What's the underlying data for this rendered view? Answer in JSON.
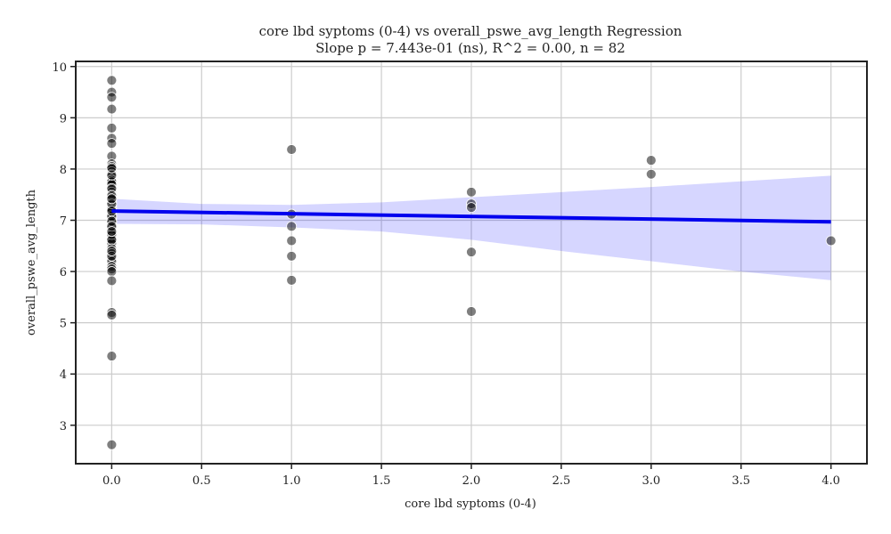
{
  "chart_data": {
    "type": "scatter",
    "title": "core lbd syptoms (0-4) vs overall_pswe_avg_length Regression",
    "subtitle": "Slope p = 7.443e-01 (ns), R^2 = 0.00, n = 82",
    "xlabel": "core lbd syptoms (0-4)",
    "ylabel": "overall_pswe_avg_length",
    "xlim": [
      -0.2,
      4.2
    ],
    "ylim": [
      2.25,
      10.1
    ],
    "x_ticks": [
      "0.0",
      "0.5",
      "1.0",
      "1.5",
      "2.0",
      "2.5",
      "3.0",
      "3.5",
      "4.0"
    ],
    "y_ticks": [
      "3",
      "4",
      "5",
      "6",
      "7",
      "8",
      "9",
      "10"
    ],
    "grid": true,
    "points": [
      [
        0,
        9.73
      ],
      [
        0,
        9.5
      ],
      [
        0,
        9.4
      ],
      [
        0,
        9.17
      ],
      [
        0,
        8.8
      ],
      [
        0,
        8.6
      ],
      [
        0,
        8.5
      ],
      [
        0,
        8.25
      ],
      [
        0,
        8.1
      ],
      [
        0,
        8.05
      ],
      [
        0,
        8.0
      ],
      [
        0,
        7.95
      ],
      [
        0,
        7.9
      ],
      [
        0,
        7.85
      ],
      [
        0,
        7.8
      ],
      [
        0,
        7.78
      ],
      [
        0,
        7.75
      ],
      [
        0,
        7.7
      ],
      [
        0,
        7.6
      ],
      [
        0,
        7.55
      ],
      [
        0,
        7.5
      ],
      [
        0,
        7.45
      ],
      [
        0,
        7.4
      ],
      [
        0,
        7.35
      ],
      [
        0,
        7.3
      ],
      [
        0,
        7.25
      ],
      [
        0,
        7.2
      ],
      [
        0,
        7.15
      ],
      [
        0,
        7.1
      ],
      [
        0,
        7.05
      ],
      [
        0,
        7.0
      ],
      [
        0,
        6.95
      ],
      [
        0,
        6.9
      ],
      [
        0,
        6.85
      ],
      [
        0,
        6.8
      ],
      [
        0,
        6.75
      ],
      [
        0,
        6.7
      ],
      [
        0,
        6.65
      ],
      [
        0,
        6.6
      ],
      [
        0,
        6.55
      ],
      [
        0,
        6.45
      ],
      [
        0,
        6.35
      ],
      [
        0,
        6.25
      ],
      [
        0,
        6.2
      ],
      [
        0,
        6.1
      ],
      [
        0,
        6.05
      ],
      [
        0,
        6.0
      ],
      [
        0,
        5.82
      ],
      [
        0,
        5.2
      ],
      [
        0,
        5.15
      ],
      [
        0,
        4.35
      ],
      [
        0,
        2.62
      ],
      [
        0,
        7.62
      ],
      [
        0,
        7.08
      ],
      [
        0,
        6.98
      ],
      [
        0,
        6.72
      ],
      [
        0,
        6.3
      ],
      [
        0,
        7.88
      ],
      [
        0,
        8.02
      ],
      [
        0,
        7.48
      ],
      [
        0,
        6.88
      ],
      [
        0,
        6.62
      ],
      [
        0,
        7.22
      ],
      [
        0,
        7.32
      ],
      [
        1,
        8.38
      ],
      [
        1,
        7.12
      ],
      [
        1,
        6.88
      ],
      [
        1,
        6.6
      ],
      [
        1,
        6.3
      ],
      [
        1,
        5.83
      ],
      [
        2,
        7.55
      ],
      [
        2,
        7.32
      ],
      [
        2,
        7.25
      ],
      [
        2,
        6.38
      ],
      [
        2,
        5.22
      ],
      [
        3,
        8.17
      ],
      [
        3,
        7.9
      ],
      [
        4,
        6.6
      ],
      [
        0,
        6.4
      ],
      [
        0,
        7.42
      ],
      [
        0,
        6.78
      ],
      [
        0,
        7.18
      ]
    ],
    "regression_line": {
      "x": [
        0,
        4
      ],
      "y": [
        7.18,
        6.97
      ]
    },
    "confidence_band": {
      "x": [
        0,
        0.5,
        1.0,
        1.5,
        2.0,
        2.5,
        3.0,
        3.5,
        4.0
      ],
      "upper": [
        7.42,
        7.32,
        7.3,
        7.35,
        7.45,
        7.55,
        7.65,
        7.76,
        7.87
      ],
      "lower": [
        6.93,
        6.92,
        6.86,
        6.78,
        6.62,
        6.4,
        6.2,
        6.0,
        5.83
      ]
    },
    "colors": {
      "points": "#000000",
      "line": "#0000ee",
      "band": "#0000ff"
    }
  }
}
